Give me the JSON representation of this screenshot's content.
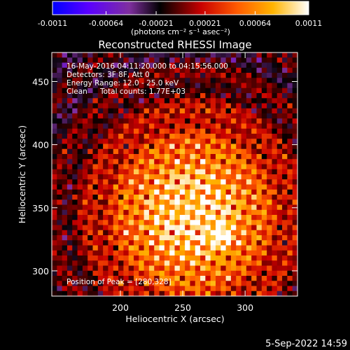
{
  "colorbar": {
    "tick_labels": [
      "-0.0011",
      "-0.00064",
      "-0.00021",
      "0.00021",
      "0.00064",
      "0.0011"
    ],
    "tick_values": [
      -0.0011,
      -0.00064,
      -0.00021,
      0.00021,
      0.00064,
      0.0011
    ],
    "range": [
      -0.0011,
      0.0011
    ],
    "units_label": "(photons cm⁻² s⁻¹ asec⁻²)",
    "colors": [
      "#0000ff",
      "#5a00ff",
      "#7f2f9f",
      "#000000",
      "#c80000",
      "#ff5a00",
      "#ffb400",
      "#ffffff"
    ]
  },
  "title": "Reconstructed RHESSI Image",
  "annotation": {
    "time": "16-May-2016 04:11:20.000 to 04:15:56.000",
    "detectors": "Detectors: 3F 8F, Att 0",
    "energy": "Energy Range: 12.0 - 25.0 keV",
    "clean": "Clean",
    "counts": "Total counts: 1.77E+03",
    "peak": "Position of Peak = [280,328]"
  },
  "footer_date": "5-Sep-2022 14:59",
  "chart_data": {
    "type": "heatmap",
    "title": "Reconstructed RHESSI Image",
    "xlabel": "Heliocentric X (arcsec)",
    "ylabel": "Heliocentric Y (arcsec)",
    "xlim": [
      145,
      342
    ],
    "ylim": [
      280,
      473
    ],
    "x_ticks": [
      200,
      250,
      300
    ],
    "y_ticks": [
      300,
      350,
      400,
      450
    ],
    "x_tick_labels": [
      "200",
      "250",
      "300"
    ],
    "y_tick_labels": [
      "300",
      "350",
      "400",
      "450"
    ],
    "peak_position": [
      280,
      328
    ],
    "grid": false,
    "colormap": "blue-purple-black-red-yellow-white",
    "value_range": [
      -0.0011,
      0.0011
    ]
  }
}
